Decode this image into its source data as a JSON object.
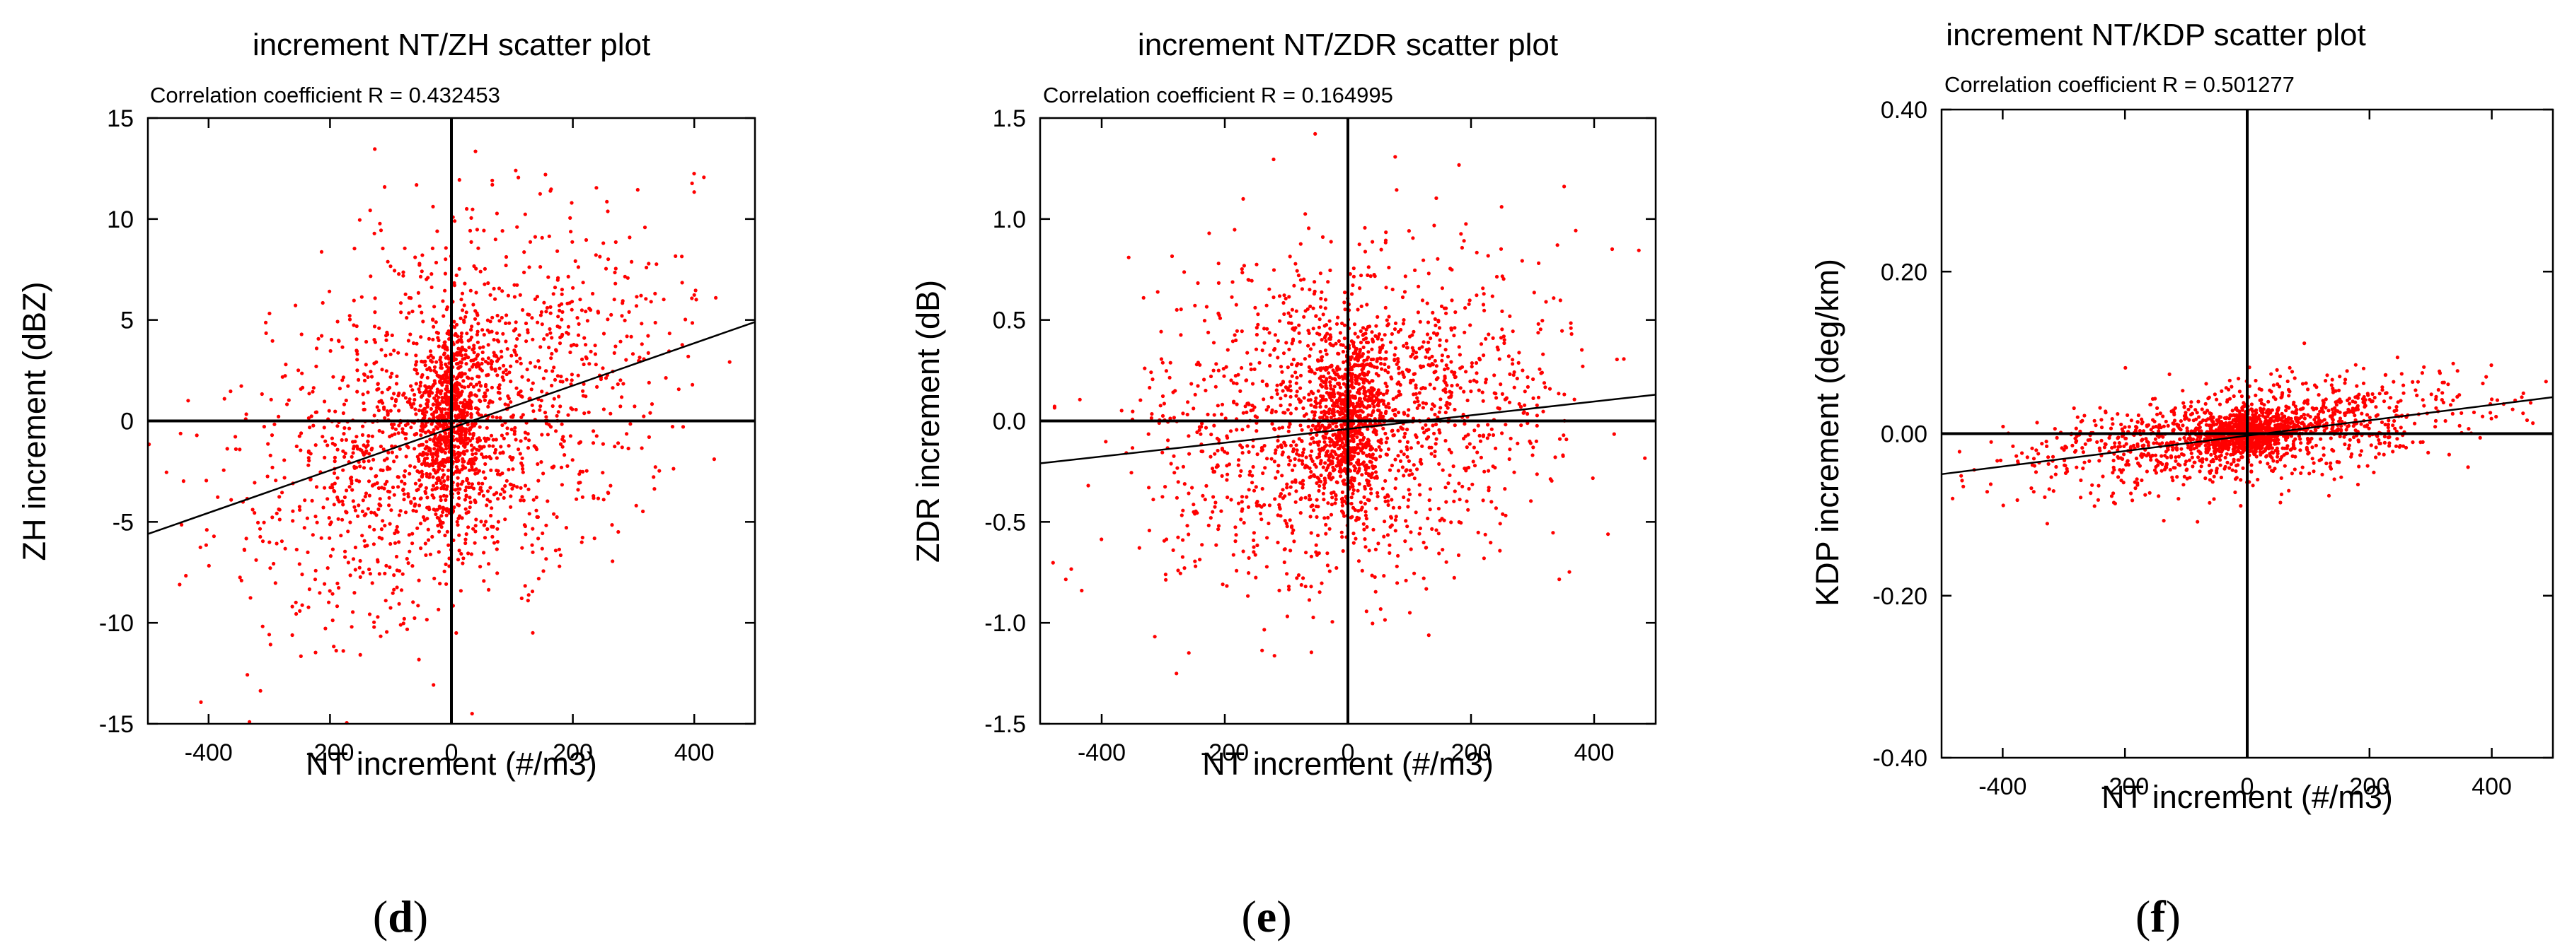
{
  "chart_data": [
    {
      "type": "scatter",
      "panel": "d",
      "title": "increment NT/ZH scatter plot",
      "annotation": "Correlation coefficient R = 0.432453",
      "xlabel": "NT increment (#/m3)",
      "ylabel": "ZH increment (dBZ)",
      "xlim": [
        -500,
        500
      ],
      "ylim": [
        -15,
        15
      ],
      "xticks": [
        -400,
        -200,
        0,
        200,
        400
      ],
      "xtick_labels": [
        "-400",
        "-200",
        "0",
        "200",
        "400"
      ],
      "yticks": [
        -15,
        -10,
        -5,
        0,
        5,
        10,
        15
      ],
      "ytick_labels": [
        "-15",
        "-10",
        "-5",
        "0",
        "5",
        "10",
        "15"
      ],
      "point_color": "#ff0000",
      "point_count": 2300,
      "correlation": 0.432453,
      "regression_line": {
        "x": [
          -500,
          500
        ],
        "y": [
          -5.6,
          4.9
        ]
      },
      "zero_lines": true,
      "distribution": {
        "x_spread": 170,
        "y_spread": 4.4,
        "slope": 0.0105,
        "core_fraction": 0.3,
        "core_x_spread": 28,
        "core_y_spread": 2.2
      }
    },
    {
      "type": "scatter",
      "panel": "e",
      "title": "increment NT/ZDR scatter plot",
      "annotation": "Correlation coefficient R = 0.164995",
      "xlabel": "NT increment (#/m3)",
      "ylabel": "ZDR increment (dB)",
      "xlim": [
        -500,
        500
      ],
      "ylim": [
        -1.5,
        1.5
      ],
      "xticks": [
        -400,
        -200,
        0,
        200,
        400
      ],
      "xtick_labels": [
        "-400",
        "-200",
        "0",
        "200",
        "400"
      ],
      "yticks": [
        -1.5,
        -1.0,
        -0.5,
        0.0,
        0.5,
        1.0,
        1.5
      ],
      "ytick_labels": [
        "-1.5",
        "-1.0",
        "-0.5",
        "0.0",
        "0.5",
        "1.0",
        "1.5"
      ],
      "point_color": "#ff0000",
      "point_count": 2300,
      "correlation": 0.164995,
      "regression_line": {
        "x": [
          -500,
          500
        ],
        "y": [
          -0.21,
          0.13
        ]
      },
      "zero_lines": true,
      "distribution": {
        "x_spread": 165,
        "y_spread": 0.4,
        "slope": 0.00034,
        "core_fraction": 0.3,
        "core_x_spread": 28,
        "core_y_spread": 0.2
      }
    },
    {
      "type": "scatter",
      "panel": "f",
      "title": "increment NT/KDP scatter plot",
      "annotation": "Correlation coefficient R = 0.501277",
      "xlabel": "NT increment (#/m3)",
      "ylabel": "KDP increment (deg/km)",
      "xlim": [
        -500,
        500
      ],
      "ylim": [
        -0.4,
        0.4
      ],
      "xticks": [
        -400,
        -200,
        0,
        200,
        400
      ],
      "xtick_labels": [
        "-400",
        "-200",
        "0",
        "200",
        "400"
      ],
      "yticks": [
        -0.4,
        -0.2,
        0.0,
        0.2,
        0.4
      ],
      "ytick_labels": [
        "-0.40",
        "-0.20",
        "0.00",
        "0.20",
        "0.40"
      ],
      "point_color": "#ff0000",
      "point_count": 1900,
      "correlation": 0.501277,
      "regression_line": {
        "x": [
          -500,
          500
        ],
        "y": [
          -0.05,
          0.045
        ]
      },
      "zero_lines": true,
      "distribution": {
        "x_spread": 170,
        "y_spread": 0.028,
        "slope": 9.25e-05,
        "core_fraction": 0.35,
        "core_x_spread": 40,
        "core_y_spread": 0.012
      }
    }
  ]
}
